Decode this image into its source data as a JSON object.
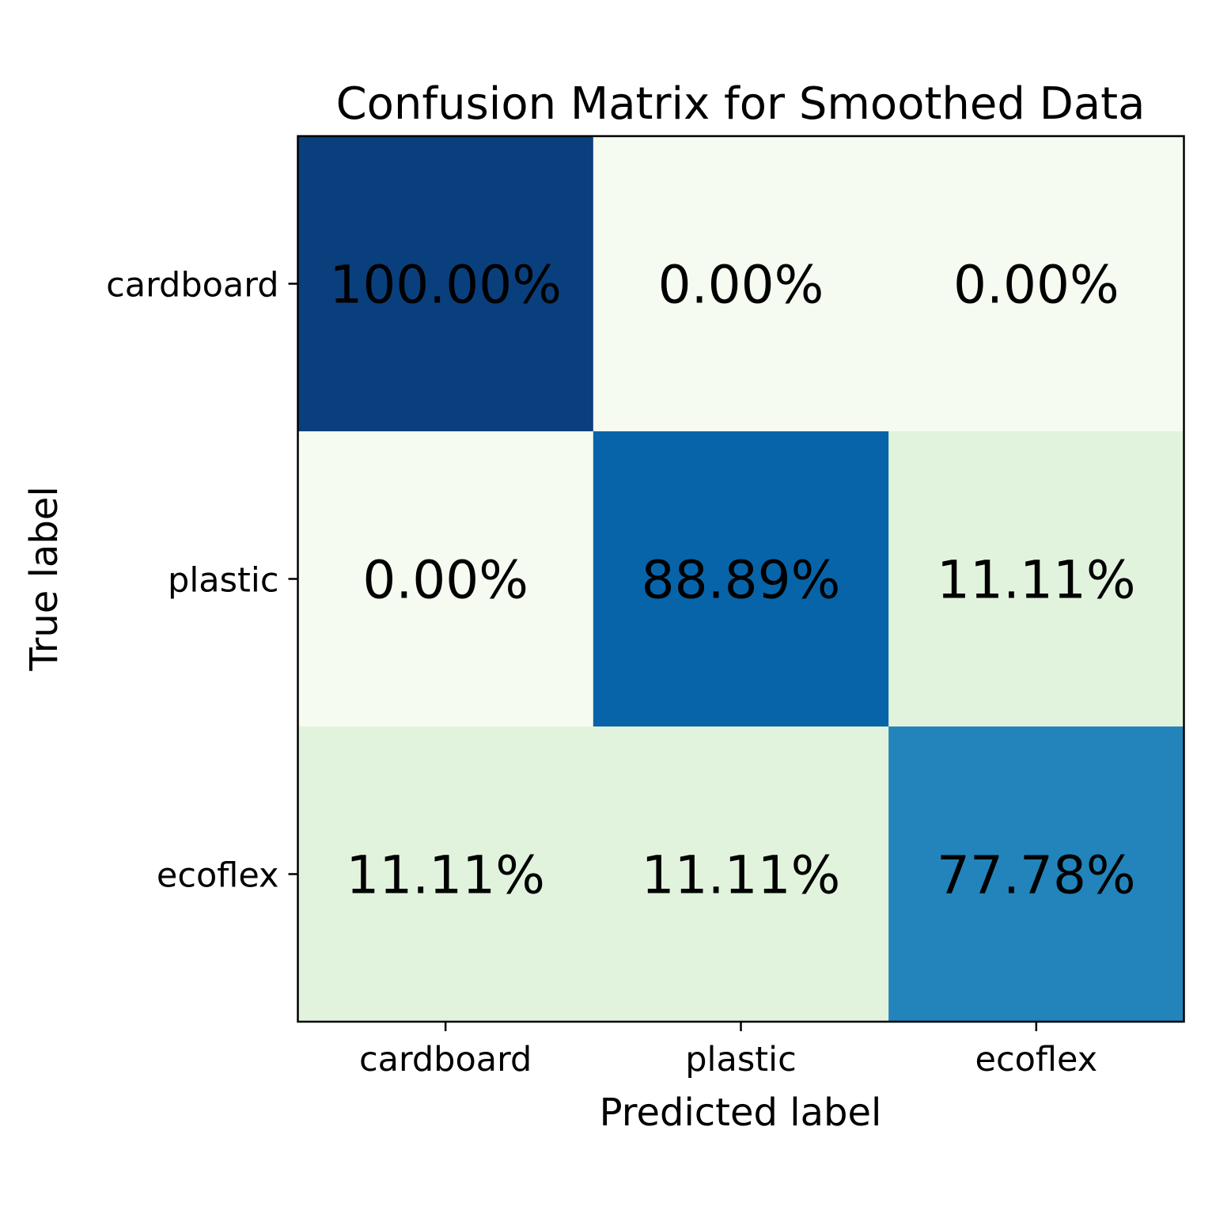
{
  "chart_data": {
    "type": "heatmap",
    "title": "Confusion Matrix for Smoothed Data",
    "xlabel": "Predicted label",
    "ylabel": "True label",
    "x_categories": [
      "cardboard",
      "plastic",
      "ecoflex"
    ],
    "y_categories": [
      "cardboard",
      "plastic",
      "ecoflex"
    ],
    "values": [
      [
        100.0,
        0.0,
        0.0
      ],
      [
        0.0,
        88.89,
        11.11
      ],
      [
        11.11,
        11.11,
        77.78
      ]
    ],
    "cell_labels": [
      [
        "100.00%",
        "0.00%",
        "0.00%"
      ],
      [
        "0.00%",
        "88.89%",
        "11.11%"
      ],
      [
        "11.11%",
        "11.11%",
        "77.78%"
      ]
    ],
    "value_range": [
      0,
      100
    ],
    "colormap": "GnBu",
    "colors": {
      "cell": [
        [
          "#0a3f7e",
          "#f5fbf0",
          "#f5fbf0"
        ],
        [
          "#f5fbf0",
          "#0864a8",
          "#e1f3dc"
        ],
        [
          "#e1f3dc",
          "#e1f3dc",
          "#2284ba"
        ]
      ],
      "text": "#000000",
      "frame": "#000000",
      "background": "#ffffff"
    },
    "grid": false,
    "colorbar": false
  }
}
